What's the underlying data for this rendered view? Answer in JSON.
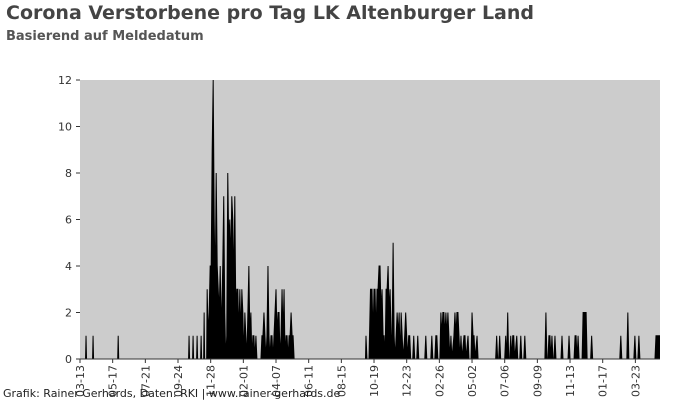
{
  "chart_data": {
    "type": "area",
    "title": "Corona Verstorbene pro Tag LK Altenburger Land",
    "subtitle": "Basierend auf Meldedatum",
    "source": "Grafik: Rainer Gerhards, Daten: RKI | www.rainer-gerhards.de",
    "color": "#000000",
    "background": "#cccccc",
    "xlim": [
      0,
      1154
    ],
    "ylim": [
      0,
      12
    ],
    "yticks": [
      0,
      2,
      4,
      6,
      8,
      10,
      12
    ],
    "xticks": [
      {
        "value": 0,
        "label": "03-13"
      },
      {
        "value": 65,
        "label": "05-17"
      },
      {
        "value": 130,
        "label": "07-21"
      },
      {
        "value": 195,
        "label": "09-24"
      },
      {
        "value": 260,
        "label": "11-28"
      },
      {
        "value": 325,
        "label": "02-01"
      },
      {
        "value": 390,
        "label": "04-07"
      },
      {
        "value": 455,
        "label": "06-11"
      },
      {
        "value": 520,
        "label": "08-15"
      },
      {
        "value": 585,
        "label": "10-19"
      },
      {
        "value": 650,
        "label": "12-23"
      },
      {
        "value": 715,
        "label": "02-26"
      },
      {
        "value": 780,
        "label": "05-02"
      },
      {
        "value": 845,
        "label": "07-06"
      },
      {
        "value": 910,
        "label": "09-09"
      },
      {
        "value": 975,
        "label": "11-13"
      },
      {
        "value": 1040,
        "label": "01-17"
      },
      {
        "value": 1105,
        "label": "03-23"
      }
    ],
    "x": [
      0,
      11,
      12,
      13,
      25,
      26,
      27,
      75,
      76,
      77,
      216,
      217,
      218,
      224,
      225,
      226,
      232,
      233,
      234,
      240,
      241,
      242,
      246,
      247,
      248,
      252,
      253,
      255,
      257,
      259,
      261,
      263,
      265,
      267,
      269,
      271,
      273,
      275,
      277,
      279,
      281,
      284,
      286,
      288,
      290,
      292,
      294,
      296,
      298,
      300,
      302,
      304,
      306,
      308,
      310,
      312,
      314,
      316,
      318,
      320,
      322,
      324,
      326,
      328,
      330,
      332,
      334,
      336,
      338,
      340,
      342,
      344,
      346,
      348,
      350,
      352,
      360,
      362,
      364,
      366,
      368,
      370,
      372,
      374,
      376,
      378,
      380,
      382,
      384,
      386,
      388,
      390,
      392,
      394,
      396,
      398,
      400,
      402,
      404,
      406,
      408,
      410,
      412,
      414,
      416,
      418,
      420,
      422,
      424,
      426,
      568,
      569,
      571,
      575,
      578,
      581,
      583,
      585,
      587,
      589,
      591,
      593,
      595,
      597,
      599,
      601,
      603,
      605,
      607,
      609,
      611,
      613,
      615,
      617,
      619,
      621,
      623,
      625,
      627,
      629,
      631,
      633,
      635,
      637,
      639,
      641,
      643,
      646,
      648,
      650,
      652,
      654,
      656,
      658,
      662,
      664,
      666,
      670,
      672,
      674,
      686,
      688,
      690,
      698,
      700,
      702,
      706,
      708,
      710,
      712,
      716,
      718,
      720,
      722,
      724,
      726,
      728,
      730,
      732,
      734,
      736,
      738,
      740,
      744,
      746,
      748,
      750,
      752,
      754,
      756,
      758,
      760,
      764,
      766,
      768,
      772,
      774,
      778,
      780,
      782,
      784,
      786,
      790,
      792,
      827,
      829,
      831,
      833,
      835,
      837,
      845,
      847,
      849,
      851,
      853,
      855,
      857,
      859,
      861,
      863,
      865,
      869,
      871,
      875,
      877,
      879,
      883,
      885,
      887,
      925,
      927,
      929,
      931,
      933,
      935,
      937,
      939,
      941,
      943,
      945,
      947,
      957,
      959,
      961,
      971,
      973,
      975,
      983,
      985,
      987,
      989,
      991,
      993,
      999,
      1001,
      1003,
      1005,
      1007,
      1009,
      1016,
      1018,
      1020,
      1074,
      1076,
      1078,
      1088,
      1090,
      1092,
      1102,
      1104,
      1106,
      1110,
      1112,
      1114,
      1144,
      1146,
      1148,
      1153
    ],
    "values": [
      0,
      0,
      1,
      0,
      0,
      1,
      0,
      0,
      1,
      0,
      0,
      1,
      0,
      0,
      1,
      0,
      0,
      1,
      0,
      0,
      1,
      0,
      0,
      2,
      0,
      0,
      3,
      1,
      2,
      4,
      4,
      9,
      12,
      6,
      3,
      8,
      4,
      3,
      2,
      4,
      1,
      4,
      7,
      2,
      0,
      1,
      8,
      5,
      6,
      4,
      7,
      6,
      3,
      7,
      2,
      3,
      3,
      1,
      3,
      1,
      3,
      2,
      0,
      2,
      1,
      0,
      2,
      4,
      1,
      2,
      0,
      1,
      1,
      0,
      1,
      0,
      0,
      1,
      1,
      2,
      1,
      0,
      1,
      4,
      1,
      0,
      1,
      1,
      0,
      1,
      2,
      3,
      1,
      2,
      2,
      0,
      1,
      3,
      1,
      3,
      0,
      1,
      1,
      0,
      1,
      1,
      2,
      1,
      1,
      0,
      0,
      1,
      0,
      0,
      3,
      3,
      1,
      3,
      3,
      1,
      3,
      3,
      4,
      4,
      2,
      3,
      1,
      1,
      0,
      3,
      3,
      4,
      2,
      3,
      1,
      1,
      5,
      1,
      0,
      1,
      2,
      1,
      2,
      0,
      2,
      1,
      0,
      1,
      2,
      1,
      0,
      1,
      1,
      0,
      0,
      1,
      0,
      0,
      1,
      0,
      0,
      1,
      0,
      0,
      1,
      0,
      0,
      1,
      1,
      0,
      0,
      2,
      1,
      2,
      2,
      1,
      2,
      1,
      2,
      1,
      0,
      1,
      0,
      1,
      2,
      1,
      2,
      2,
      1,
      0,
      1,
      0,
      1,
      1,
      0,
      1,
      0,
      0,
      2,
      1,
      1,
      0,
      1,
      0,
      0,
      1,
      0,
      0,
      1,
      0,
      0,
      1,
      0,
      2,
      0,
      0,
      1,
      0,
      1,
      1,
      0,
      1,
      0,
      0,
      1,
      0,
      0,
      1,
      0,
      0,
      2,
      0,
      0,
      1,
      1,
      0,
      1,
      0,
      0,
      1,
      0,
      0,
      1,
      0,
      0,
      1,
      0,
      0,
      1,
      1,
      0,
      1,
      0,
      0,
      2,
      2,
      2,
      2,
      0,
      0,
      1,
      0,
      0,
      1,
      0,
      0,
      2,
      0,
      0,
      1,
      0,
      0,
      1,
      0,
      0,
      1,
      1,
      1
    ]
  }
}
